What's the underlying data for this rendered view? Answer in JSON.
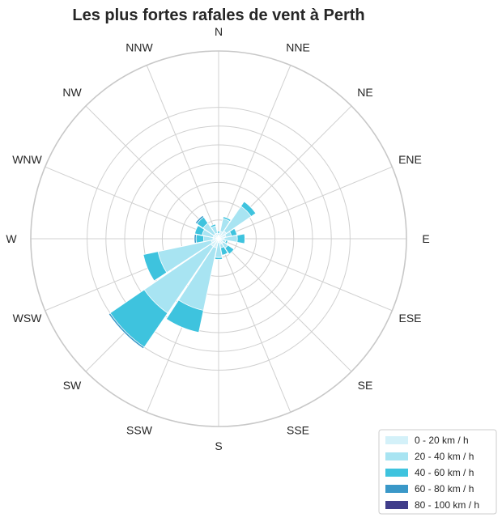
{
  "chart_data": {
    "type": "windrose",
    "title": "Les plus fortes rafales de vent à Perth",
    "directions": [
      "N",
      "NNE",
      "NE",
      "ENE",
      "E",
      "ESE",
      "SE",
      "SSE",
      "S",
      "SSW",
      "SW",
      "WSW",
      "W",
      "WNW",
      "NW",
      "NNW"
    ],
    "radial_max": 100,
    "rings": [
      10,
      20,
      30,
      40,
      50,
      60,
      70
    ],
    "grid": true,
    "legend_position": "bottom-right",
    "bins": [
      {
        "label": "0 - 20 km / h",
        "color": "#d4f1f9"
      },
      {
        "label": "20 - 40 km / h",
        "color": "#a8e4f2"
      },
      {
        "label": "40 - 60 km / h",
        "color": "#3ec3de"
      },
      {
        "label": "60 - 80 km / h",
        "color": "#3a98c8"
      },
      {
        "label": "80 - 100 km / h",
        "color": "#403d8a"
      }
    ],
    "cumulative_frequencies": [
      [
        2,
        3,
        4,
        4,
        4
      ],
      [
        4,
        11,
        12,
        12,
        12
      ],
      [
        5,
        21,
        24,
        24,
        24
      ],
      [
        4,
        7,
        10,
        10,
        10
      ],
      [
        3,
        10,
        14,
        14,
        14
      ],
      [
        2,
        4,
        5,
        5,
        5
      ],
      [
        3,
        6,
        10,
        10,
        10
      ],
      [
        3,
        5,
        9,
        9,
        9
      ],
      [
        2,
        10,
        11,
        11,
        11
      ],
      [
        5,
        39,
        51,
        51,
        51
      ],
      [
        5,
        48,
        70,
        71,
        71
      ],
      [
        4,
        33,
        41,
        41,
        41
      ],
      [
        3,
        8,
        12,
        13,
        13
      ],
      [
        3,
        9,
        13,
        13,
        13
      ],
      [
        3,
        10,
        14,
        15,
        15
      ],
      [
        3,
        7,
        8,
        8,
        8
      ]
    ]
  }
}
